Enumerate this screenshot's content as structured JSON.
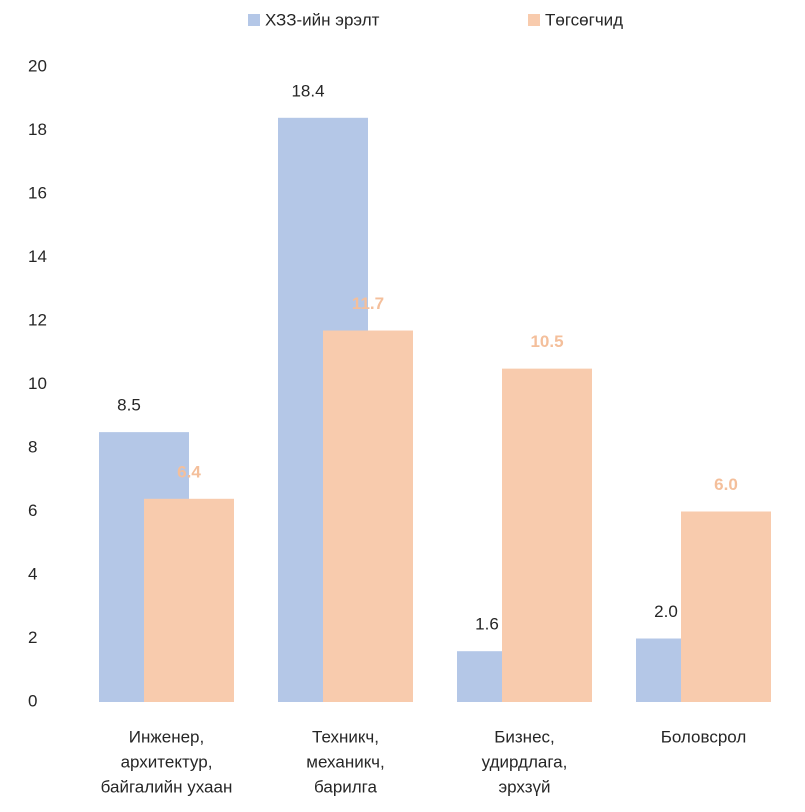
{
  "chart_data": {
    "type": "bar",
    "categories": [
      [
        "Инженер,",
        "архитектур,",
        "байгалийн ухаан"
      ],
      [
        "Техникч,",
        "механикч,",
        "барилга"
      ],
      [
        "Бизнес,",
        "удирдлага,",
        "эрхзүй"
      ],
      [
        "Боловсрол"
      ]
    ],
    "series": [
      {
        "name": "ХЗЗ-ийн эрэлт",
        "color": "#b4c7e7",
        "label_color": "#262626",
        "values": [
          8.5,
          18.4,
          1.6,
          2.0
        ],
        "value_labels": [
          "8.5",
          "18.4",
          "1.6",
          "2.0"
        ]
      },
      {
        "name": "Төгсөгчид",
        "color": "#f8cbad",
        "label_color": "#f4bf9b",
        "values": [
          6.4,
          11.7,
          10.5,
          6.0
        ],
        "value_labels": [
          "6.4",
          "11.7",
          "10.5",
          "6.0"
        ]
      }
    ],
    "ylim": [
      0,
      20
    ],
    "yticks": [
      0,
      2,
      4,
      6,
      8,
      10,
      12,
      14,
      16,
      18,
      20
    ],
    "legend": "top",
    "grid": false
  }
}
